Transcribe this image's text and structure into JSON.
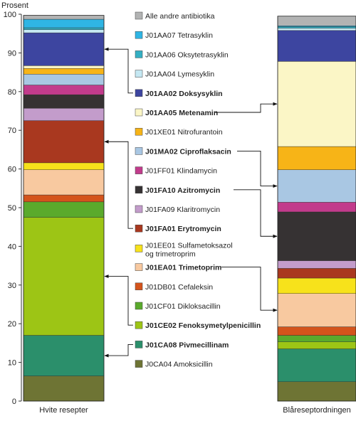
{
  "chart_data": {
    "type": "bar",
    "stacked": true,
    "ylabel": "Prosent",
    "ylim": [
      0,
      100
    ],
    "yticks": [
      0,
      10,
      20,
      30,
      40,
      50,
      60,
      70,
      80,
      90,
      100
    ],
    "grid": false,
    "categories": [
      "Hvite resepter",
      "Blåreseptordningen"
    ],
    "series": [
      {
        "name": "J0CA04 Amoksicillin",
        "bold": false,
        "color": "#6e7434",
        "values": [
          6.5,
          5.0
        ]
      },
      {
        "name": "J01CA08 Pivmecillinam",
        "bold": true,
        "color": "#2b8f6b",
        "values": [
          10.5,
          8.5
        ]
      },
      {
        "name": "J01CE02 Fenoksymetylpenicillin",
        "bold": true,
        "color": "#9dc515",
        "values": [
          30.5,
          1.8
        ]
      },
      {
        "name": "J01CF01 Dikloksacillin",
        "bold": false,
        "color": "#5aaa2c",
        "values": [
          4.0,
          1.7
        ]
      },
      {
        "name": "J01DB01 Cefaleksin",
        "bold": false,
        "color": "#d4541c",
        "values": [
          1.8,
          2.2
        ]
      },
      {
        "name": "J01EA01 Trimetoprim",
        "bold": true,
        "color": "#f8c9a0",
        "values": [
          6.5,
          8.6
        ]
      },
      {
        "name": "J01EE01 Sulfametoksazol og trimetroprim",
        "bold": false,
        "color": "#f7e21b",
        "values": [
          1.8,
          4.0
        ]
      },
      {
        "name": "J01FA01 Erytromycin",
        "bold": true,
        "color": "#a9381f",
        "values": [
          10.9,
          2.5
        ]
      },
      {
        "name": "J01FA09 Klaritromycin",
        "bold": false,
        "color": "#c39ccb",
        "values": [
          3.2,
          2.0
        ]
      },
      {
        "name": "J01FA10 Azitromycin",
        "bold": true,
        "color": "#363233",
        "values": [
          3.5,
          12.6
        ]
      },
      {
        "name": "J01FF01 Klindamycin",
        "bold": false,
        "color": "#c23b8c",
        "values": [
          2.5,
          2.5
        ]
      },
      {
        "name": "J01MA02 Ciproflaksacin",
        "bold": true,
        "color": "#a9c7e3",
        "values": [
          2.8,
          8.4
        ]
      },
      {
        "name": "J01XE01 Nitrofurantoin",
        "bold": false,
        "color": "#f7b417",
        "values": [
          1.5,
          6.0
        ]
      },
      {
        "name": "J01AA05 Metenamin",
        "bold": true,
        "color": "#fbf6c6",
        "values": [
          0.7,
          22.0
        ]
      },
      {
        "name": "J01AA02 Doksysyklin",
        "bold": true,
        "color": "#3d45a0",
        "values": [
          8.5,
          8.0
        ]
      },
      {
        "name": "J01AA04 Lymesyklin",
        "bold": false,
        "color": "#c5e8f3",
        "values": [
          0.8,
          0.6
        ]
      },
      {
        "name": "J01AA06 Oksytetrasyklin",
        "bold": false,
        "color": "#34afc3",
        "values": [
          0.5,
          0.4
        ]
      },
      {
        "name": "J01AA07 Tetrasyklin",
        "bold": false,
        "color": "#2fb5e4",
        "values": [
          2.2,
          0.2
        ]
      },
      {
        "name": "Alle andre antibiotika",
        "bold": false,
        "color": "#b2b3b3",
        "values": [
          1.0,
          2.5
        ]
      }
    ],
    "arrows_left": [
      "J01AA02 Doksysyklin",
      "J01FA01 Erytromycin",
      "J01CE02 Fenoksymetylpenicillin",
      "J01CA08 Pivmecillinam"
    ],
    "arrows_right": [
      "J01AA05 Metenamin",
      "J01MA02 Ciproflaksacin",
      "J01FA10 Azitromycin",
      "J01EA01 Trimetoprim"
    ]
  }
}
